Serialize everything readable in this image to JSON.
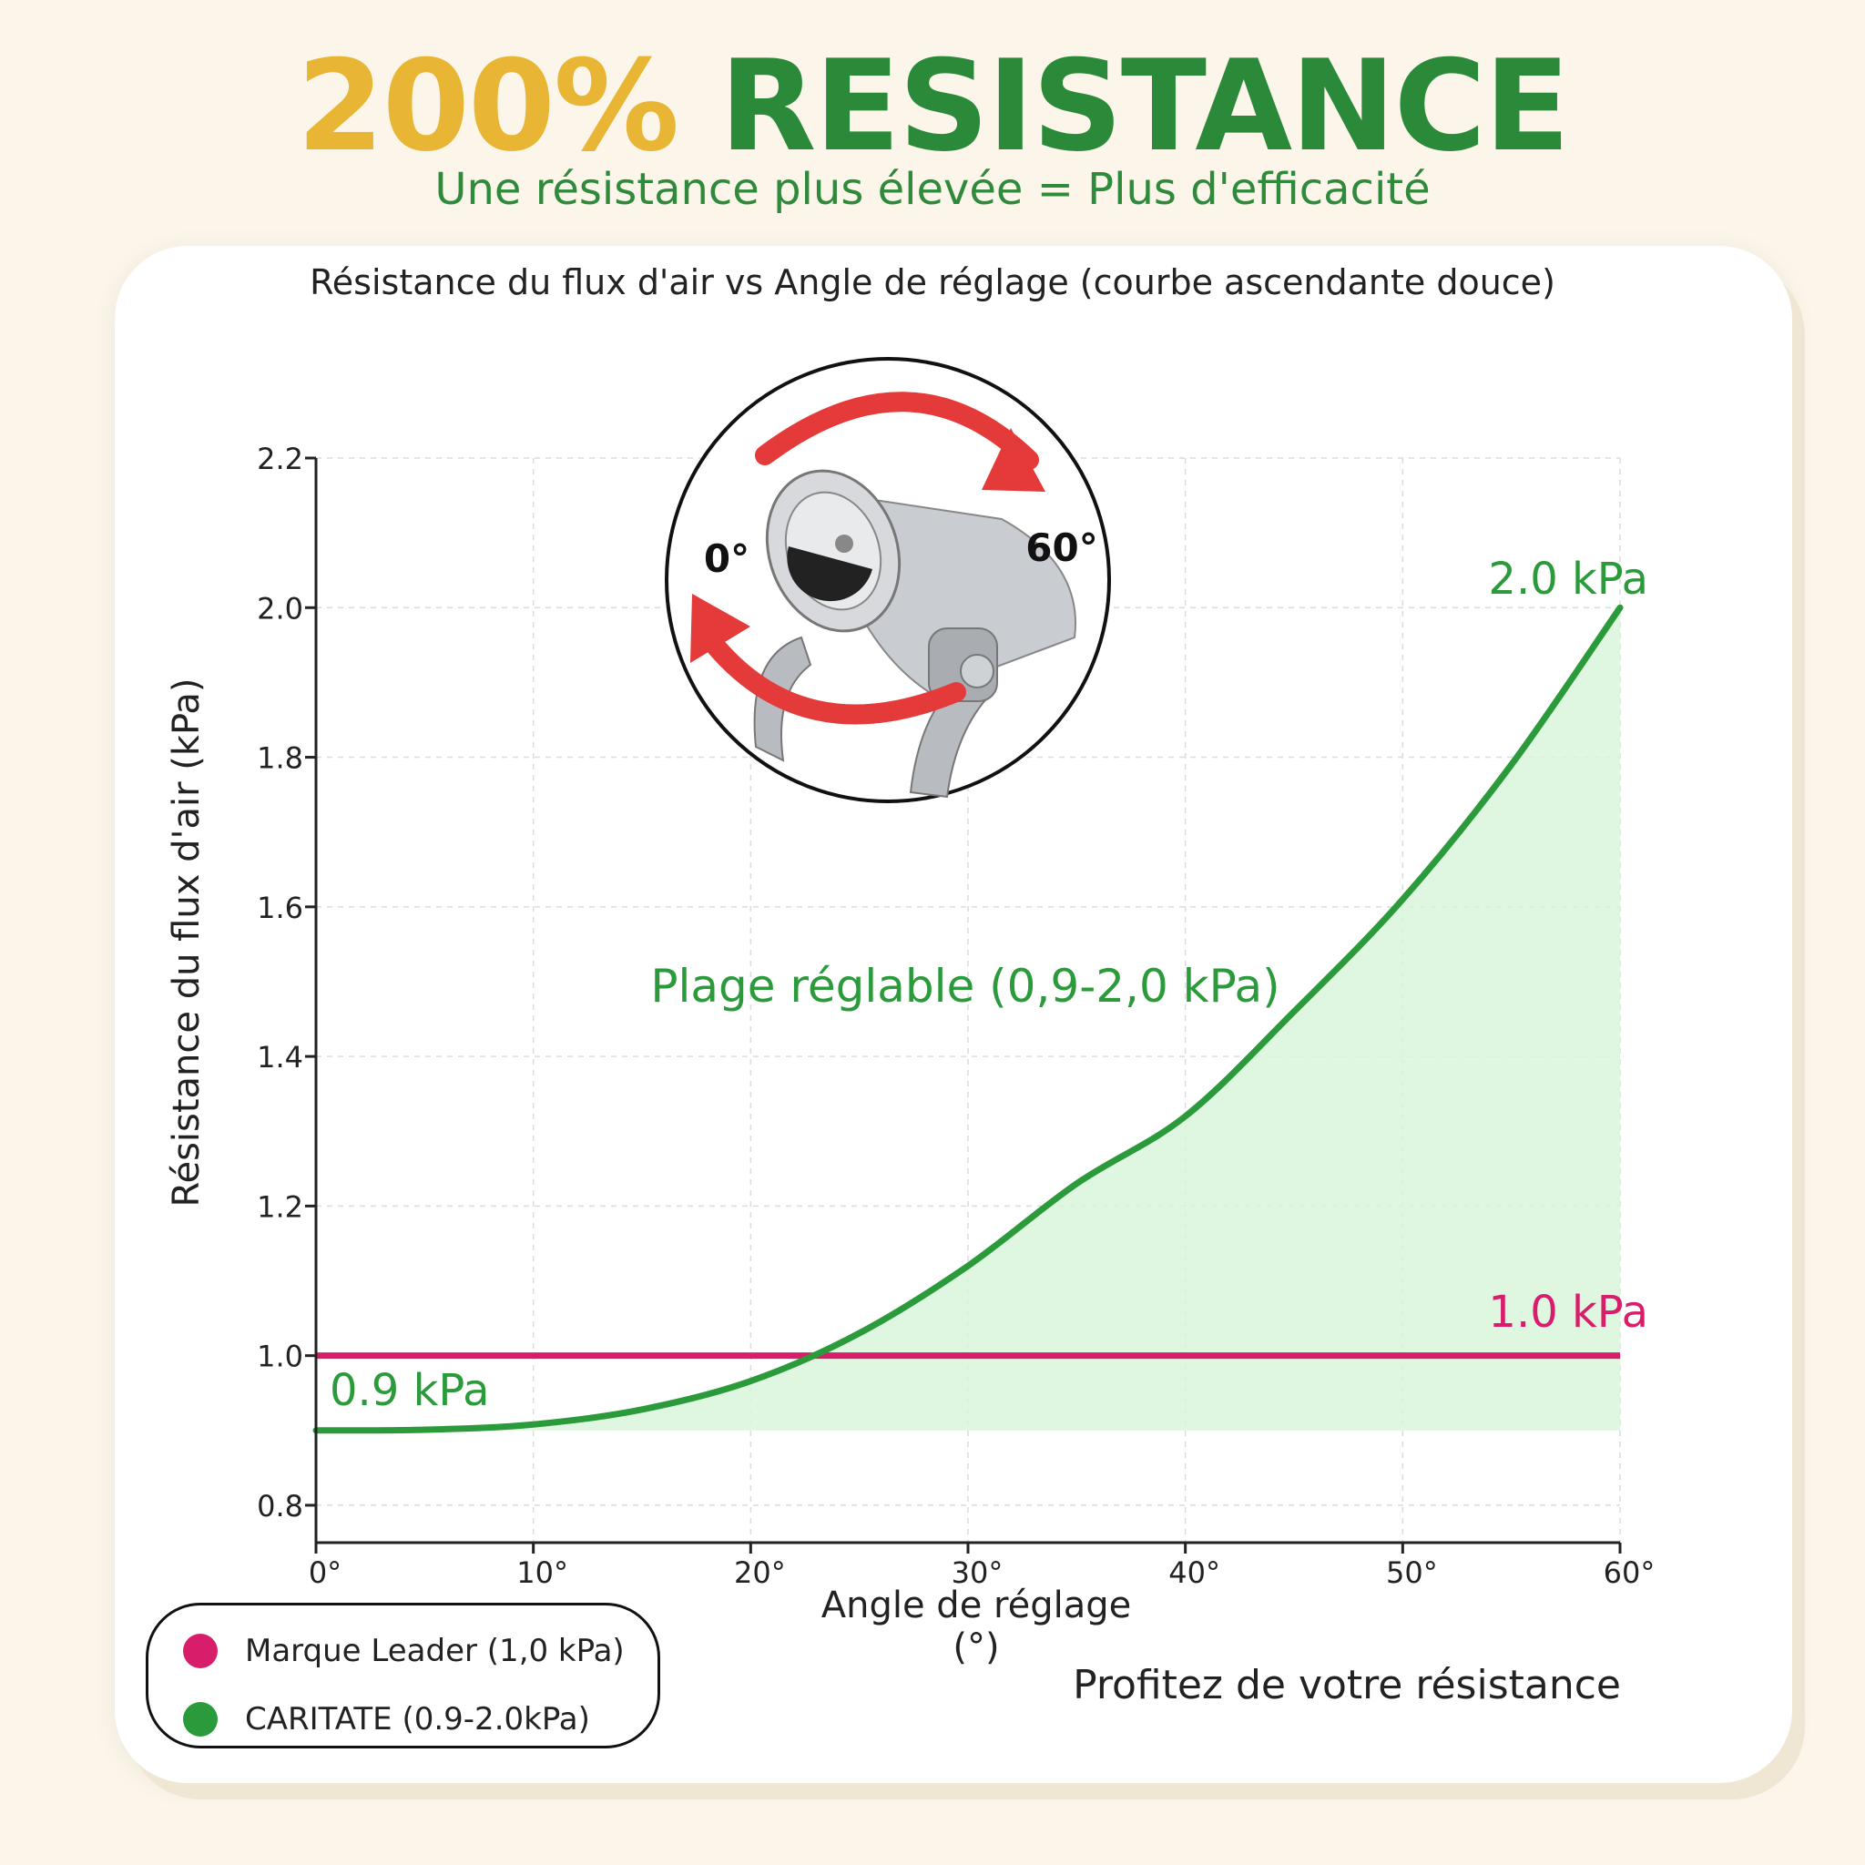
{
  "header": {
    "headline_pct": "200%",
    "headline_word": "RESISTANCE",
    "subheadline": "Une résistance plus élevée = Plus d'efficacité"
  },
  "colors": {
    "leader": "#d81e6a",
    "caritate": "#2a9a3a",
    "fill": "#d9f4dc",
    "pct_gold": "#e8b634",
    "title_green": "#2a8a3a"
  },
  "chart_data": {
    "type": "line",
    "title": "Résistance du flux d'air vs Angle de réglage (courbe ascendante douce)",
    "xlabel": "Angle de réglage (°)",
    "ylabel": "Résistance du flux d'air (kPa)",
    "xlim": [
      0,
      60
    ],
    "ylim": [
      0.75,
      2.2
    ],
    "x_ticks": [
      0,
      10,
      20,
      30,
      40,
      50,
      60
    ],
    "x_tick_labels": [
      "0°",
      "10°",
      "20°",
      "30°",
      "40°",
      "50°",
      "60°"
    ],
    "y_ticks": [
      0.8,
      1.0,
      1.2,
      1.4,
      1.6,
      1.8,
      2.0,
      2.2
    ],
    "y_tick_labels": [
      "0.8",
      "1.0",
      "1.2",
      "1.4",
      "1.6",
      "1.8",
      "2.0",
      "2.2"
    ],
    "grid": true,
    "series": [
      {
        "name": "Marque Leader (1,0 kPa)",
        "x": [
          0,
          60
        ],
        "y": [
          1.0,
          1.0
        ]
      },
      {
        "name": "CARITATE (0.9-2.0kPa)",
        "x": [
          0,
          5,
          10,
          15,
          20,
          25,
          30,
          35,
          40,
          45,
          50,
          55,
          60
        ],
        "y": [
          0.9,
          0.901,
          0.908,
          0.928,
          0.966,
          1.03,
          1.12,
          1.23,
          1.32,
          1.46,
          1.61,
          1.79,
          2.0
        ]
      }
    ],
    "shaded_region": "Plage réglable (0,9-2,0 kPa)",
    "annotations": {
      "end_high": "2.0 kPa",
      "end_leader": "1.0 kPa",
      "start_low": "0.9 kPa",
      "range": "Plage réglable (0,9-2,0 kPa)"
    },
    "legend_position": "bottom-left"
  },
  "inset": {
    "label_start": "0°",
    "label_end": "60°"
  },
  "legend": {
    "items": [
      {
        "label": "Marque Leader (1,0 kPa)"
      },
      {
        "label": "CARITATE (0.9-2.0kPa)"
      }
    ]
  },
  "footer": {
    "tagline": "Profitez de votre résistance"
  }
}
